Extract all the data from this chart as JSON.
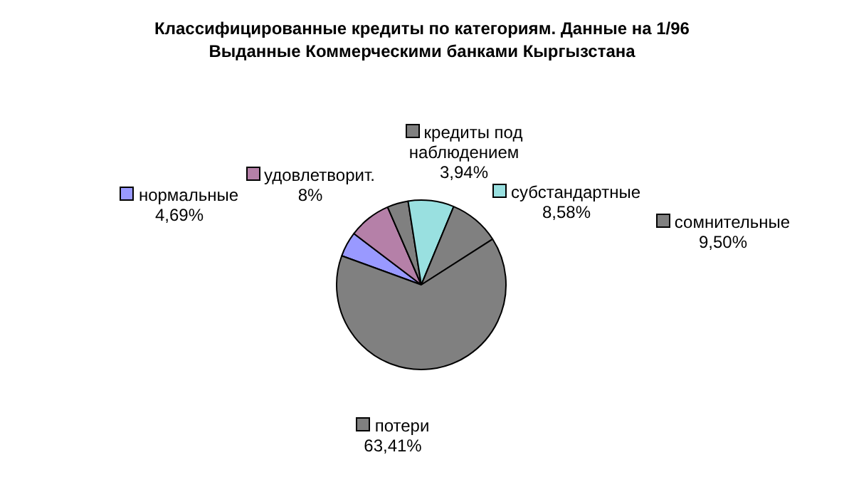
{
  "chart_data": {
    "type": "pie",
    "title": "Классифицированные кредиты по категориям. Данные на 1/96\nВыданные Коммерческими банками Кыргызстана",
    "categories": [
      "нормальные",
      "удовлетворит.",
      "кредиты под наблюдением",
      "субстандартные",
      "сомнительные",
      "потери"
    ],
    "values": [
      4.69,
      8,
      3.94,
      8.58,
      9.5,
      63.41
    ],
    "value_labels": [
      "4,69%",
      "8%",
      "3,94%",
      "8,58%",
      "9,50%",
      "63,41%"
    ],
    "colors": [
      "#9999ff",
      "#b580a8",
      "#808080",
      "#99e0e0",
      "#808080",
      "#808080"
    ],
    "legend": "top"
  }
}
